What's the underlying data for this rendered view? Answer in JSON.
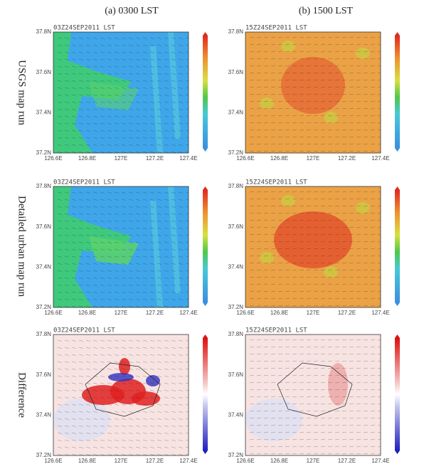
{
  "columns": [
    "(a) 0300 LST",
    "(b) 1500 LST"
  ],
  "rows": [
    "USGS map run",
    "Detailed urban map run",
    "Difference"
  ],
  "panels": [
    {
      "title": "03Z24SEP2011 LST"
    },
    {
      "title": "15Z24SEP2011 LST"
    },
    {
      "title": "03Z24SEP2011 LST"
    },
    {
      "title": "15Z24SEP2011 LST"
    },
    {
      "title": "03Z24SEP2011 LST"
    },
    {
      "title": "15Z24SEP2011 LST"
    }
  ],
  "x_ticks": [
    "126.6E",
    "126.8E",
    "127E",
    "127.2E",
    "127.4E"
  ],
  "y_ticks": [
    "37.2N",
    "37.4N",
    "37.6N",
    "37.8N"
  ]
}
